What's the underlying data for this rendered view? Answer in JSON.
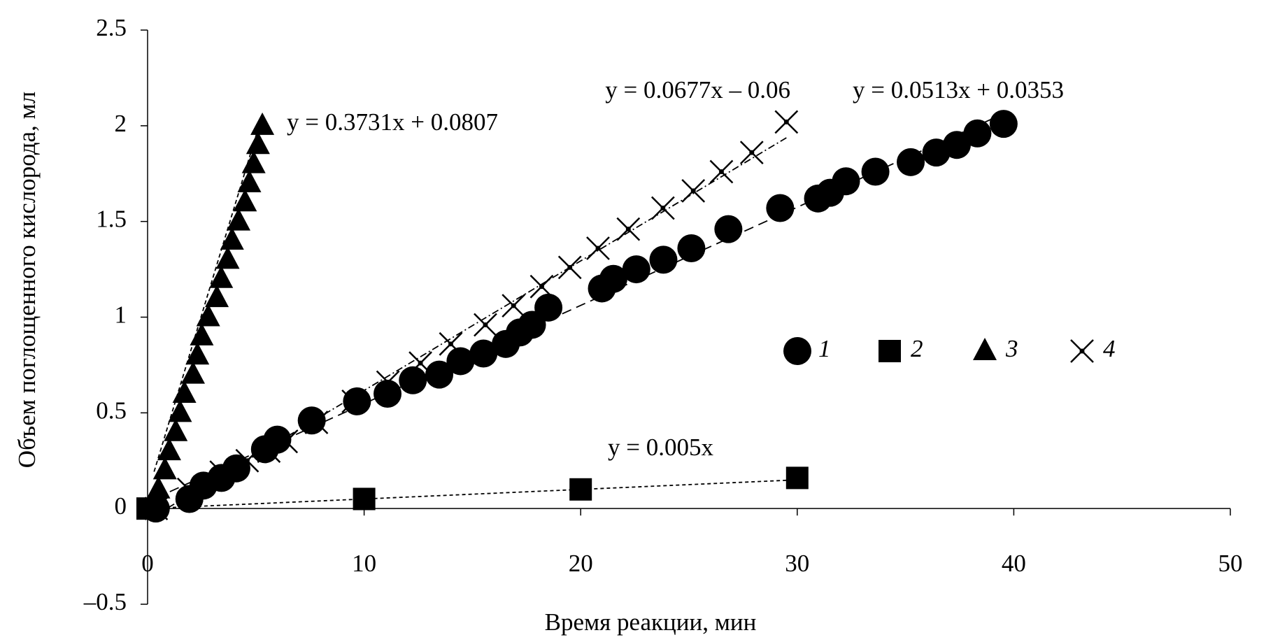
{
  "chart_data": {
    "type": "scatter",
    "xlabel": "Время реакции, мин",
    "ylabel": "Объем поглощенного кислорода, мл",
    "xlim": [
      0,
      50
    ],
    "xticks": [
      0,
      10,
      20,
      30,
      40,
      50
    ],
    "ylim": [
      -0.5,
      2.5
    ],
    "yticks": [
      {
        "value": -0.5,
        "label": "–0.5"
      },
      0,
      0.5,
      1,
      1.5,
      2,
      2.5
    ],
    "series": [
      {
        "name": "1",
        "marker": "circle",
        "color": "#000000",
        "dash": "14 8",
        "x": [
          0.38,
          1.93,
          2.58,
          3.41,
          4.1,
          5.42,
          5.99,
          7.58,
          9.67,
          11.08,
          12.25,
          13.47,
          14.45,
          15.51,
          16.54,
          17.19,
          17.75,
          18.51,
          20.98,
          21.51,
          22.57,
          23.82,
          25.11,
          26.82,
          29.21,
          30.96,
          31.52,
          32.25,
          33.61,
          35.24,
          36.42,
          37.37,
          38.32,
          39.53
        ],
        "values": [
          0,
          0.05,
          0.12,
          0.16,
          0.21,
          0.31,
          0.36,
          0.46,
          0.56,
          0.6,
          0.67,
          0.7,
          0.77,
          0.81,
          0.86,
          0.92,
          0.96,
          1.05,
          1.15,
          1.2,
          1.25,
          1.3,
          1.36,
          1.46,
          1.57,
          1.62,
          1.65,
          1.71,
          1.76,
          1.81,
          1.86,
          1.9,
          1.96,
          2.01
        ],
        "trendline": {
          "label": "y = 0.0513x + 0.0353",
          "slope": 0.0513,
          "intercept": 0.0353
        }
      },
      {
        "name": "2",
        "marker": "square",
        "color": "#000000",
        "dash": "5 4",
        "x": [
          0,
          10,
          20,
          30
        ],
        "values": [
          0,
          0.05,
          0.1,
          0.16
        ],
        "trendline": {
          "label": "y = 0.005x",
          "slope": 0.005,
          "intercept": 0
        }
      },
      {
        "name": "3",
        "marker": "triangle",
        "color": "#000000",
        "dash": "6 4",
        "x": [
          0.3,
          0.5,
          0.8,
          1.0,
          1.3,
          1.5,
          1.7,
          2.1,
          2.3,
          2.5,
          2.8,
          3.2,
          3.4,
          3.7,
          3.9,
          4.2,
          4.5,
          4.7,
          4.9,
          5.1,
          5.3
        ],
        "values": [
          0,
          0.1,
          0.2,
          0.3,
          0.4,
          0.5,
          0.6,
          0.7,
          0.8,
          0.9,
          1.0,
          1.1,
          1.2,
          1.3,
          1.4,
          1.5,
          1.6,
          1.7,
          1.8,
          1.9,
          2.0
        ],
        "trendline": {
          "label": "y = 0.3731x + 0.0807",
          "slope": 0.3731,
          "intercept": 0.0807
        }
      },
      {
        "name": "4",
        "marker": "cross",
        "color": "#000000",
        "dash": "10 4 2 4",
        "x": [
          0.4,
          1.9,
          3.4,
          4.6,
          5.6,
          6.4,
          7.8,
          9.5,
          11.1,
          12.6,
          14.0,
          15.6,
          16.9,
          18.2,
          19.5,
          20.8,
          22.2,
          23.8,
          25.2,
          26.5,
          27.9,
          29.5
        ],
        "values": [
          0,
          0.1,
          0.19,
          0.25,
          0.3,
          0.35,
          0.45,
          0.56,
          0.66,
          0.76,
          0.86,
          0.96,
          1.06,
          1.16,
          1.26,
          1.36,
          1.46,
          1.57,
          1.66,
          1.76,
          1.86,
          2.02
        ],
        "trendline": {
          "label": "y = 0.0677x – 0.06",
          "slope": 0.0677,
          "intercept": -0.06
        }
      }
    ],
    "annotation_color": "#e8202a"
  }
}
